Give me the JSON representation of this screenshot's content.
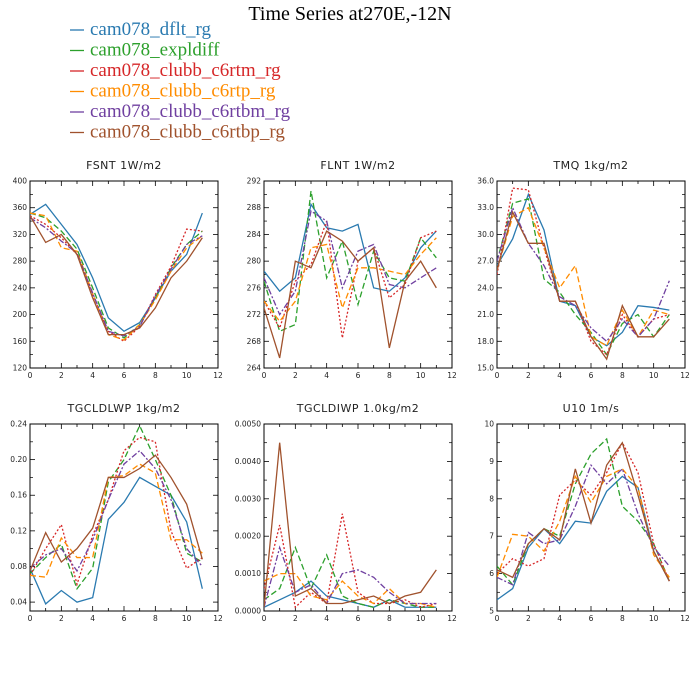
{
  "title": "Time Series at270E,-12N",
  "legend": [
    {
      "name": "cam078_dflt_rg",
      "color": "#2a7ab0",
      "dash": ""
    },
    {
      "name": "cam078_expldiff",
      "color": "#2ca02c",
      "dash": "6,3"
    },
    {
      "name": "cam078_clubb_c6rtm_rg",
      "color": "#d62728",
      "dash": "2,2"
    },
    {
      "name": "cam078_clubb_c6rtp_rg",
      "color": "#ff8c00",
      "dash": "6,3"
    },
    {
      "name": "cam078_clubb_c6rtbm_rg",
      "color": "#7040a0",
      "dash": "6,2,2,2"
    },
    {
      "name": "cam078_clubb_c6rtbp_rg",
      "color": "#a0522d",
      "dash": ""
    }
  ],
  "chart_data": [
    {
      "type": "line",
      "title": "FSNT   1W/m2",
      "xlim": [
        0,
        12
      ],
      "ylim": [
        120,
        400
      ],
      "xticks": [
        0,
        2,
        4,
        6,
        8,
        10,
        12
      ],
      "yticks": [
        120,
        160,
        200,
        240,
        280,
        320,
        360,
        400
      ],
      "ytick_labels": [
        "120",
        "160",
        "200",
        "240",
        "280",
        "320",
        "360",
        "400"
      ],
      "x": [
        0,
        1,
        2,
        3,
        4,
        5,
        6,
        7,
        8,
        9,
        10,
        11
      ],
      "series": [
        {
          "values": [
            350,
            365,
            335,
            305,
            255,
            195,
            175,
            188,
            225,
            265,
            290,
            352
          ]
        },
        {
          "values": [
            352,
            345,
            325,
            298,
            240,
            180,
            165,
            185,
            225,
            270,
            305,
            325
          ]
        },
        {
          "values": [
            348,
            335,
            315,
            290,
            230,
            175,
            160,
            182,
            230,
            272,
            328,
            325
          ]
        },
        {
          "values": [
            352,
            348,
            300,
            295,
            232,
            170,
            162,
            185,
            222,
            265,
            300,
            318
          ]
        },
        {
          "values": [
            345,
            330,
            310,
            292,
            232,
            175,
            168,
            182,
            228,
            268,
            305,
            318
          ]
        },
        {
          "values": [
            348,
            308,
            320,
            290,
            225,
            170,
            170,
            180,
            210,
            255,
            280,
            315
          ]
        }
      ]
    },
    {
      "type": "line",
      "title": "FLNT   1W/m2",
      "xlim": [
        0,
        12
      ],
      "ylim": [
        264,
        292
      ],
      "xticks": [
        0,
        2,
        4,
        6,
        8,
        10,
        12
      ],
      "yticks": [
        264,
        268,
        272,
        276,
        280,
        284,
        288,
        292
      ],
      "ytick_labels": [
        "264",
        "268",
        "272",
        "276",
        "280",
        "284",
        "288",
        "292"
      ],
      "x": [
        0,
        1,
        2,
        3,
        4,
        5,
        6,
        7,
        8,
        9,
        10,
        11
      ],
      "series": [
        {
          "values": [
            278.5,
            275.5,
            277.5,
            288.5,
            285,
            284.5,
            285.5,
            276,
            275.5,
            277.5,
            282,
            284.5
          ]
        },
        {
          "values": [
            277,
            269.5,
            270.5,
            290.5,
            277.5,
            283,
            273.5,
            281.5,
            277.5,
            277,
            283.5,
            280.5
          ]
        },
        {
          "values": [
            274,
            270,
            277,
            279.5,
            286,
            268.5,
            280,
            282,
            274.5,
            276.5,
            283.5,
            284.5
          ]
        },
        {
          "values": [
            274,
            271,
            274,
            282,
            282.5,
            273,
            279,
            279,
            278.5,
            278,
            281,
            283.5
          ]
        },
        {
          "values": [
            277.5,
            272,
            275.5,
            287.5,
            286,
            276,
            281.5,
            282.5,
            276.5,
            276,
            277.5,
            279
          ]
        },
        {
          "values": [
            273,
            265.5,
            280,
            279,
            284.5,
            283,
            280,
            282,
            267,
            277,
            280,
            276
          ]
        }
      ]
    },
    {
      "type": "line",
      "title": "TMQ   1kg/m2",
      "xlim": [
        0,
        12
      ],
      "ylim": [
        15,
        36
      ],
      "xticks": [
        0,
        2,
        4,
        6,
        8,
        10,
        12
      ],
      "yticks": [
        15,
        18,
        21,
        24,
        27,
        30,
        33,
        36
      ],
      "ytick_labels": [
        "15.0",
        "18.0",
        "21.0",
        "24.0",
        "27.0",
        "30.0",
        "33.0",
        "36.0"
      ],
      "x": [
        0,
        1,
        2,
        3,
        4,
        5,
        6,
        7,
        8,
        9,
        10,
        11
      ],
      "series": [
        {
          "values": [
            26.5,
            29.5,
            34.5,
            30.5,
            22.5,
            22,
            18.5,
            17.5,
            19,
            22,
            21.8,
            21.5
          ]
        },
        {
          "values": [
            27,
            33.5,
            34,
            25,
            23.5,
            21,
            19,
            16.5,
            20,
            21,
            18.5,
            21
          ]
        },
        {
          "values": [
            25.5,
            35.2,
            35,
            28.5,
            22.5,
            22.5,
            18,
            16.5,
            21,
            18.5,
            20.5,
            21
          ]
        },
        {
          "values": [
            26,
            32,
            33,
            28.5,
            24,
            26.5,
            18.5,
            17.5,
            21.5,
            18.5,
            21.5,
            21
          ]
        },
        {
          "values": [
            27,
            33,
            29,
            26.5,
            23,
            22,
            19.5,
            18,
            20.5,
            18.5,
            20.5,
            24.8
          ]
        },
        {
          "values": [
            26,
            32.5,
            29,
            29,
            22.5,
            22.5,
            18.5,
            16,
            22,
            18.5,
            18.5,
            20.5
          ]
        }
      ]
    },
    {
      "type": "line",
      "title": "TGCLDLWP   1kg/m2",
      "xlim": [
        0,
        12
      ],
      "ylim": [
        0.03,
        0.24
      ],
      "xticks": [
        0,
        2,
        4,
        6,
        8,
        10,
        12
      ],
      "yticks": [
        0.04,
        0.08,
        0.12,
        0.16,
        0.2,
        0.24
      ],
      "ytick_labels": [
        "0.04",
        "0.08",
        "0.12",
        "0.16",
        "0.20",
        "0.24"
      ],
      "x": [
        0,
        1,
        2,
        3,
        4,
        5,
        6,
        7,
        8,
        9,
        10,
        11
      ],
      "series": [
        {
          "values": [
            0.078,
            0.038,
            0.053,
            0.04,
            0.045,
            0.133,
            0.152,
            0.18,
            0.17,
            0.16,
            0.13,
            0.055
          ]
        },
        {
          "values": [
            0.072,
            0.09,
            0.105,
            0.055,
            0.078,
            0.175,
            0.2,
            0.238,
            0.2,
            0.16,
            0.095,
            0.085
          ]
        },
        {
          "values": [
            0.07,
            0.1,
            0.127,
            0.06,
            0.115,
            0.155,
            0.21,
            0.225,
            0.22,
            0.12,
            0.078,
            0.09
          ]
        },
        {
          "values": [
            0.07,
            0.068,
            0.112,
            0.09,
            0.09,
            0.18,
            0.182,
            0.195,
            0.185,
            0.11,
            0.11,
            0.095
          ]
        },
        {
          "values": [
            0.078,
            0.093,
            0.1,
            0.075,
            0.11,
            0.155,
            0.195,
            0.21,
            0.19,
            0.155,
            0.1,
            0.08
          ]
        },
        {
          "values": [
            0.075,
            0.118,
            0.085,
            0.1,
            0.123,
            0.18,
            0.18,
            0.19,
            0.205,
            0.18,
            0.15,
            0.088
          ]
        }
      ]
    },
    {
      "type": "line",
      "title": "TGCLDIWP   1.0kg/m2",
      "xlim": [
        0,
        12
      ],
      "ylim": [
        0,
        0.005
      ],
      "xticks": [
        0,
        2,
        4,
        6,
        8,
        10,
        12
      ],
      "yticks": [
        0,
        0.001,
        0.002,
        0.003,
        0.004,
        0.005
      ],
      "ytick_labels": [
        "0.0000",
        "0.0010",
        "0.0020",
        "0.0030",
        "0.0040",
        "0.0050"
      ],
      "x": [
        0,
        1,
        2,
        3,
        4,
        5,
        6,
        7,
        8,
        9,
        10,
        11
      ],
      "series": [
        {
          "values": [
            0.0001,
            0.0003,
            0.0005,
            0.0008,
            0.0004,
            0.0003,
            0.0002,
            0.0001,
            0.0003,
            0.0001,
            0.0001,
            0.0001
          ]
        },
        {
          "values": [
            0.0003,
            0.0006,
            0.0017,
            0.0006,
            0.0015,
            0.0004,
            0.0002,
            0.0001,
            0.0003,
            0.0002,
            0.0001,
            0.0001
          ]
        },
        {
          "values": [
            0.0006,
            0.0023,
            0.0001,
            0.0005,
            0.0002,
            0.0026,
            0.0005,
            0.0002,
            0.0002,
            0.0003,
            0.0001,
            0.0002
          ]
        },
        {
          "values": [
            0.0008,
            0.001,
            0.001,
            0.0004,
            0.0003,
            0.0008,
            0.0004,
            0.0002,
            0.0006,
            0.0002,
            0.0002,
            0.0001
          ]
        },
        {
          "values": [
            0.0001,
            0.0017,
            0.0005,
            0.0007,
            0.0002,
            0.001,
            0.0011,
            0.0009,
            0.0005,
            0.0002,
            0.0002,
            0.0002
          ]
        },
        {
          "values": [
            0.0001,
            0.0045,
            0.0004,
            0.0006,
            0.0002,
            0.0002,
            0.0003,
            0.0004,
            0.0002,
            0.0004,
            0.0005,
            0.0011
          ]
        }
      ]
    },
    {
      "type": "line",
      "title": "U10   1m/s",
      "xlim": [
        0,
        12
      ],
      "ylim": [
        5,
        10
      ],
      "xticks": [
        0,
        2,
        4,
        6,
        8,
        10,
        12
      ],
      "yticks": [
        5,
        6,
        7,
        8,
        9,
        10
      ],
      "ytick_labels": [
        "5",
        "6",
        "7",
        "8",
        "9",
        "10"
      ],
      "x": [
        0,
        1,
        2,
        3,
        4,
        5,
        6,
        7,
        8,
        9,
        10,
        11
      ],
      "series": [
        {
          "values": [
            5.3,
            5.6,
            6.7,
            7.2,
            6.8,
            7.4,
            7.35,
            8.2,
            8.6,
            8.3,
            6.6,
            5.8
          ]
        },
        {
          "values": [
            6.2,
            5.7,
            6.8,
            7.2,
            7,
            8.4,
            9.2,
            9.6,
            7.8,
            7.4,
            6.8,
            5.8
          ]
        },
        {
          "values": [
            6,
            6.4,
            6.2,
            6.4,
            8.1,
            8.5,
            8.1,
            8.7,
            9.5,
            8.7,
            6.8,
            5.8
          ]
        },
        {
          "values": [
            5.9,
            7.05,
            7,
            6.6,
            7.4,
            8.6,
            7.9,
            8.6,
            8.8,
            8.3,
            6.5,
            5.9
          ]
        },
        {
          "values": [
            5.9,
            5.7,
            7.1,
            6.8,
            6.9,
            7.8,
            8.9,
            8.4,
            8.8,
            7.6,
            6.7,
            6.2
          ]
        },
        {
          "values": [
            6.1,
            5.9,
            6.8,
            7.2,
            6.9,
            8.8,
            7.35,
            8.9,
            9.5,
            8.1,
            6.6,
            5.8
          ]
        }
      ]
    }
  ]
}
